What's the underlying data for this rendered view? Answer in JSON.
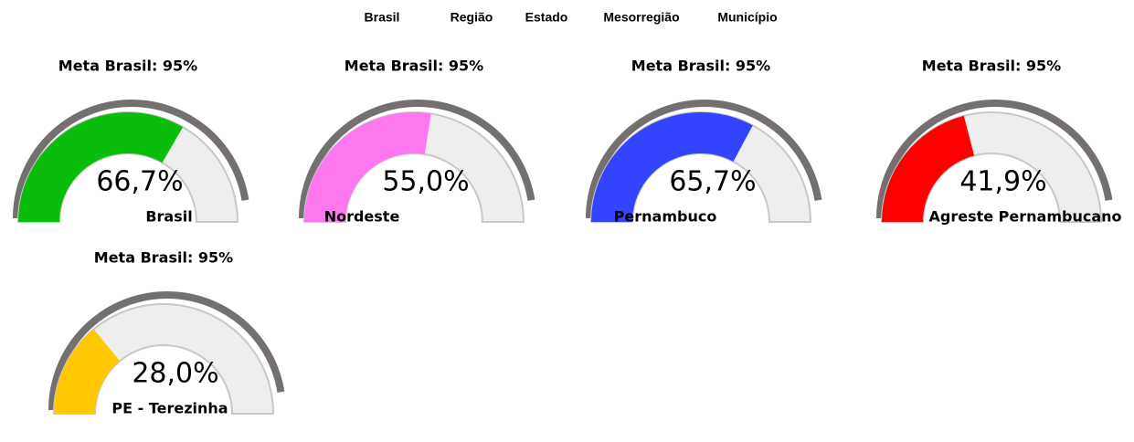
{
  "nav": [
    "Brasil",
    "Região",
    "Estado",
    "Mesorregião",
    "Município"
  ],
  "chart_data": [
    {
      "type": "gauge",
      "title": "Meta Brasil: 95%",
      "label": "Brasil",
      "values": [
        66.7
      ],
      "value_labels": [
        "66,7%"
      ],
      "target": 95,
      "color": "#0bbd0b",
      "ylim": [
        0,
        100
      ]
    },
    {
      "type": "gauge",
      "title": "Meta Brasil: 95%",
      "label": "Nordeste",
      "values": [
        55.0
      ],
      "value_labels": [
        "55,0%"
      ],
      "target": 95,
      "color": "#ff77ee",
      "ylim": [
        0,
        100
      ]
    },
    {
      "type": "gauge",
      "title": "Meta Brasil: 95%",
      "label": "Pernambuco",
      "values": [
        65.7
      ],
      "value_labels": [
        "65,7%"
      ],
      "target": 95,
      "color": "#3344ff",
      "ylim": [
        0,
        100
      ]
    },
    {
      "type": "gauge",
      "title": "Meta Brasil: 95%",
      "label": "Agreste Pernambucano",
      "values": [
        41.9
      ],
      "value_labels": [
        "41,9%"
      ],
      "target": 95,
      "color": "#ff0000",
      "ylim": [
        0,
        100
      ]
    },
    {
      "type": "gauge",
      "title": "Meta Brasil: 95%",
      "label": "PE - Terezinha",
      "values": [
        28.0
      ],
      "value_labels": [
        "28,0%"
      ],
      "target": 95,
      "color": "#ffc800",
      "ylim": [
        0,
        100
      ]
    }
  ]
}
